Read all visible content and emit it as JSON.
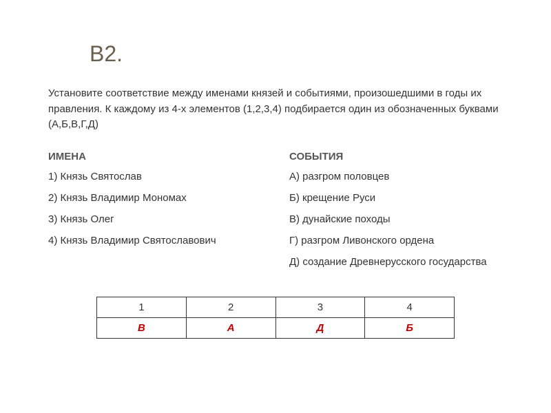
{
  "title": "В2.",
  "instruction": "Установите соответствие между именами князей и событиями, произошедшими в годы их правления. К каждому из 4-х элементов (1,2,3,4) подбирается один из обозначенных буквами (А,Б,В,Г,Д)",
  "columns": {
    "left": {
      "header": "ИМЕНА",
      "items": [
        "1) Князь Святослав",
        "2) Князь Владимир Мономах",
        "3) Князь Олег",
        "4) Князь Владимир Святославович"
      ]
    },
    "right": {
      "header": "СОБЫТИЯ",
      "items": [
        "А) разгром половцев",
        "Б) крещение Руси",
        "В) дунайские походы",
        "Г) разгром Ливонского ордена",
        "Д) создание Древнерусского государства"
      ]
    }
  },
  "answer_table": {
    "headers": [
      "1",
      "2",
      "3",
      "4"
    ],
    "answers": [
      "В",
      "А",
      "Д",
      "Б"
    ],
    "border_color": "#333333",
    "answer_color": "#c00000"
  },
  "colors": {
    "title_color": "#6b5e4a",
    "text_color": "#333333",
    "background": "#ffffff"
  },
  "typography": {
    "title_fontsize": 32,
    "body_fontsize": 15,
    "font_family": "Arial"
  }
}
